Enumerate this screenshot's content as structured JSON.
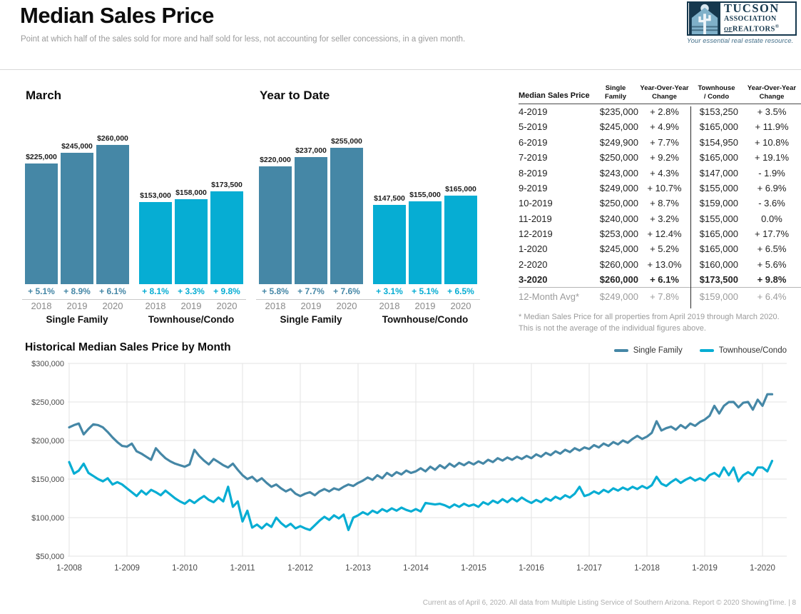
{
  "page": {
    "title": "Median Sales Price",
    "subtitle": "Point at which half of the sales sold for more and half sold for less, not accounting for seller concessions, in a given month.",
    "footer": "Current as of April 6, 2020. All data from Multiple Listing Service of Southern Arizona. Report © 2020 ShowingTime.",
    "page_number": "| 8"
  },
  "logo": {
    "line1": "TUCSON",
    "line2": "ASSOCIATION",
    "of": "OF",
    "realtors": "REALTORS",
    "reg": "®",
    "tagline": "Your essential real estate resource."
  },
  "colors": {
    "single_family": "#4587A6",
    "townhouse": "#06ADD3",
    "grid": "#e3e3e3",
    "axis_text": "#4a4a4a",
    "year_text": "#8a8a8a"
  },
  "bar_charts": [
    {
      "title": "March",
      "groups": [
        {
          "label": "Single Family",
          "color_key": "single_family",
          "bars": [
            {
              "year": "2018",
              "value": 225000,
              "label": "$225,000",
              "change": "+ 5.1%"
            },
            {
              "year": "2019",
              "value": 245000,
              "label": "$245,000",
              "change": "+ 8.9%"
            },
            {
              "year": "2020",
              "value": 260000,
              "label": "$260,000",
              "change": "+ 6.1%"
            }
          ]
        },
        {
          "label": "Townhouse/Condo",
          "color_key": "townhouse",
          "bars": [
            {
              "year": "2018",
              "value": 153000,
              "label": "$153,000",
              "change": "+ 8.1%"
            },
            {
              "year": "2019",
              "value": 158000,
              "label": "$158,000",
              "change": "+ 3.3%"
            },
            {
              "year": "2020",
              "value": 173500,
              "label": "$173,500",
              "change": "+ 9.8%"
            }
          ]
        }
      ]
    },
    {
      "title": "Year to Date",
      "groups": [
        {
          "label": "Single Family",
          "color_key": "single_family",
          "bars": [
            {
              "year": "2018",
              "value": 220000,
              "label": "$220,000",
              "change": "+ 5.8%"
            },
            {
              "year": "2019",
              "value": 237000,
              "label": "$237,000",
              "change": "+ 7.7%"
            },
            {
              "year": "2020",
              "value": 255000,
              "label": "$255,000",
              "change": "+ 7.6%"
            }
          ]
        },
        {
          "label": "Townhouse/Condo",
          "color_key": "townhouse",
          "bars": [
            {
              "year": "2018",
              "value": 147500,
              "label": "$147,500",
              "change": "+ 3.1%"
            },
            {
              "year": "2019",
              "value": 155000,
              "label": "$155,000",
              "change": "+ 5.1%"
            },
            {
              "year": "2020",
              "value": 165000,
              "label": "$165,000",
              "change": "+ 6.5%"
            }
          ]
        }
      ]
    }
  ],
  "table": {
    "headers": [
      {
        "line1": "Median Sales Price",
        "line2": ""
      },
      {
        "line1": "Single",
        "line2": "Family"
      },
      {
        "line1": "Year-Over-Year",
        "line2": "Change"
      },
      {
        "line1": "Townhouse",
        "line2": "/ Condo"
      },
      {
        "line1": "Year-Over-Year",
        "line2": "Change"
      }
    ],
    "rows": [
      {
        "label": "4-2019",
        "sf": "$235,000",
        "sf_change": "+ 2.8%",
        "tc": "$153,250",
        "tc_change": "+ 3.5%",
        "bold": false
      },
      {
        "label": "5-2019",
        "sf": "$245,000",
        "sf_change": "+ 4.9%",
        "tc": "$165,000",
        "tc_change": "+ 11.9%",
        "bold": false
      },
      {
        "label": "6-2019",
        "sf": "$249,900",
        "sf_change": "+ 7.7%",
        "tc": "$154,950",
        "tc_change": "+ 10.8%",
        "bold": false
      },
      {
        "label": "7-2019",
        "sf": "$250,000",
        "sf_change": "+ 9.2%",
        "tc": "$165,000",
        "tc_change": "+ 19.1%",
        "bold": false
      },
      {
        "label": "8-2019",
        "sf": "$243,000",
        "sf_change": "+ 4.3%",
        "tc": "$147,000",
        "tc_change": "- 1.9%",
        "bold": false
      },
      {
        "label": "9-2019",
        "sf": "$249,000",
        "sf_change": "+ 10.7%",
        "tc": "$155,000",
        "tc_change": "+ 6.9%",
        "bold": false
      },
      {
        "label": "10-2019",
        "sf": "$250,000",
        "sf_change": "+ 8.7%",
        "tc": "$159,000",
        "tc_change": "- 3.6%",
        "bold": false
      },
      {
        "label": "11-2019",
        "sf": "$240,000",
        "sf_change": "+ 3.2%",
        "tc": "$155,000",
        "tc_change": "0.0%",
        "bold": false
      },
      {
        "label": "12-2019",
        "sf": "$253,000",
        "sf_change": "+ 12.4%",
        "tc": "$165,000",
        "tc_change": "+ 17.7%",
        "bold": false
      },
      {
        "label": "1-2020",
        "sf": "$245,000",
        "sf_change": "+ 5.2%",
        "tc": "$165,000",
        "tc_change": "+ 6.5%",
        "bold": false
      },
      {
        "label": "2-2020",
        "sf": "$260,000",
        "sf_change": "+ 13.0%",
        "tc": "$160,000",
        "tc_change": "+ 5.6%",
        "bold": false
      },
      {
        "label": "3-2020",
        "sf": "$260,000",
        "sf_change": "+ 6.1%",
        "tc": "$173,500",
        "tc_change": "+ 9.8%",
        "bold": true
      }
    ],
    "avg_row": {
      "label": "12-Month Avg*",
      "sf": "$249,000",
      "sf_change": "+ 7.8%",
      "tc": "$159,000",
      "tc_change": "+ 6.4%"
    },
    "footnote_line1": "* Median Sales Price for all properties from April 2019 through March 2020.",
    "footnote_line2": "This is not the average of the individual figures above."
  },
  "chart_data": [
    {
      "type": "bar",
      "title": "March",
      "categories": [
        "2018",
        "2019",
        "2020"
      ],
      "series": [
        {
          "name": "Single Family",
          "values": [
            225000,
            245000,
            260000
          ],
          "changes": [
            "+ 5.1%",
            "+ 8.9%",
            "+ 6.1%"
          ]
        },
        {
          "name": "Townhouse/Condo",
          "values": [
            153000,
            158000,
            173500
          ],
          "changes": [
            "+ 8.1%",
            "+ 3.3%",
            "+ 9.8%"
          ]
        }
      ]
    },
    {
      "type": "bar",
      "title": "Year to Date",
      "categories": [
        "2018",
        "2019",
        "2020"
      ],
      "series": [
        {
          "name": "Single Family",
          "values": [
            220000,
            237000,
            255000
          ],
          "changes": [
            "+ 5.8%",
            "+ 7.7%",
            "+ 7.6%"
          ]
        },
        {
          "name": "Townhouse/Condo",
          "values": [
            147500,
            155000,
            165000
          ],
          "changes": [
            "+ 3.1%",
            "+ 5.1%",
            "+ 6.5%"
          ]
        }
      ]
    },
    {
      "type": "line",
      "title": "Historical Median Sales Price by Month",
      "x_start": "1-2008",
      "x_end": "3-2020",
      "x_ticks": [
        "1-2008",
        "1-2009",
        "1-2010",
        "1-2011",
        "1-2012",
        "1-2013",
        "1-2014",
        "1-2015",
        "1-2016",
        "1-2017",
        "1-2018",
        "1-2019",
        "1-2020"
      ],
      "y_ticks": [
        "$300,000",
        "$250,000",
        "$200,000",
        "$150,000",
        "$100,000",
        "$50,000"
      ],
      "y_tick_values": [
        300000,
        250000,
        200000,
        150000,
        100000,
        50000
      ],
      "ylim": [
        50000,
        300000
      ],
      "grid": true,
      "legend_position": "top-right",
      "series": [
        {
          "name": "Single Family",
          "color_key": "single_family",
          "values": [
            217000,
            220000,
            222000,
            208000,
            215000,
            221000,
            220000,
            217000,
            211000,
            204000,
            198000,
            193000,
            192000,
            196000,
            186000,
            183000,
            179000,
            175000,
            190000,
            183000,
            177000,
            173000,
            170000,
            168000,
            166000,
            169000,
            188000,
            180000,
            174000,
            169000,
            176000,
            172000,
            168000,
            165000,
            170000,
            162000,
            155000,
            150000,
            153000,
            147000,
            151000,
            145000,
            140000,
            143000,
            138000,
            134000,
            137000,
            131000,
            128000,
            131000,
            133000,
            129000,
            134000,
            137000,
            134000,
            138000,
            136000,
            140000,
            143000,
            141000,
            145000,
            148000,
            152000,
            149000,
            155000,
            151000,
            158000,
            154000,
            159000,
            156000,
            161000,
            158000,
            160000,
            164000,
            160000,
            166000,
            162000,
            168000,
            164000,
            170000,
            166000,
            171000,
            168000,
            172000,
            169000,
            173000,
            170000,
            175000,
            172000,
            177000,
            174000,
            178000,
            175000,
            179000,
            176000,
            180000,
            177000,
            182000,
            179000,
            184000,
            181000,
            186000,
            183000,
            188000,
            185000,
            190000,
            187000,
            191000,
            189000,
            194000,
            191000,
            196000,
            193000,
            198000,
            195000,
            200000,
            197000,
            202000,
            206000,
            202000,
            205000,
            210000,
            225000,
            213000,
            216000,
            218000,
            214000,
            220000,
            216000,
            222000,
            219000,
            224000,
            227000,
            232000,
            245000,
            235000,
            245000,
            249900,
            250000,
            243000,
            249000,
            250000,
            240000,
            253000,
            245000,
            260000,
            260000
          ]
        },
        {
          "name": "Townhouse/Condo",
          "color_key": "townhouse",
          "values": [
            172000,
            157000,
            161000,
            170000,
            158000,
            154000,
            150000,
            147000,
            151000,
            143000,
            146000,
            143000,
            138000,
            133000,
            128000,
            135000,
            130000,
            136000,
            133000,
            129000,
            135000,
            130000,
            125000,
            121000,
            118000,
            123000,
            119000,
            124000,
            128000,
            123000,
            120000,
            126000,
            121000,
            140000,
            114000,
            121000,
            95000,
            109000,
            87000,
            91000,
            86000,
            92000,
            88000,
            100000,
            93000,
            88000,
            92000,
            86000,
            89000,
            86000,
            84000,
            90000,
            96000,
            101000,
            97000,
            103000,
            99000,
            104000,
            84000,
            100000,
            103000,
            107000,
            104000,
            109000,
            106000,
            111000,
            108000,
            112000,
            109000,
            113000,
            110000,
            108000,
            111000,
            108000,
            119000,
            118000,
            117000,
            118000,
            116000,
            113000,
            117000,
            114000,
            118000,
            115000,
            117000,
            114000,
            120000,
            117000,
            122000,
            119000,
            124000,
            120000,
            125000,
            121000,
            126000,
            122000,
            119000,
            123000,
            120000,
            125000,
            122000,
            127000,
            124000,
            129000,
            126000,
            131000,
            140000,
            128000,
            130000,
            134000,
            131000,
            136000,
            133000,
            138000,
            135000,
            139000,
            136000,
            140000,
            137000,
            141000,
            138000,
            142000,
            153000,
            144000,
            141000,
            146000,
            150000,
            145000,
            149000,
            152000,
            148000,
            151000,
            148000,
            155000,
            158000,
            153250,
            165000,
            154950,
            165000,
            147000,
            155000,
            159000,
            155000,
            165000,
            165000,
            160000,
            173500
          ]
        }
      ]
    }
  ]
}
